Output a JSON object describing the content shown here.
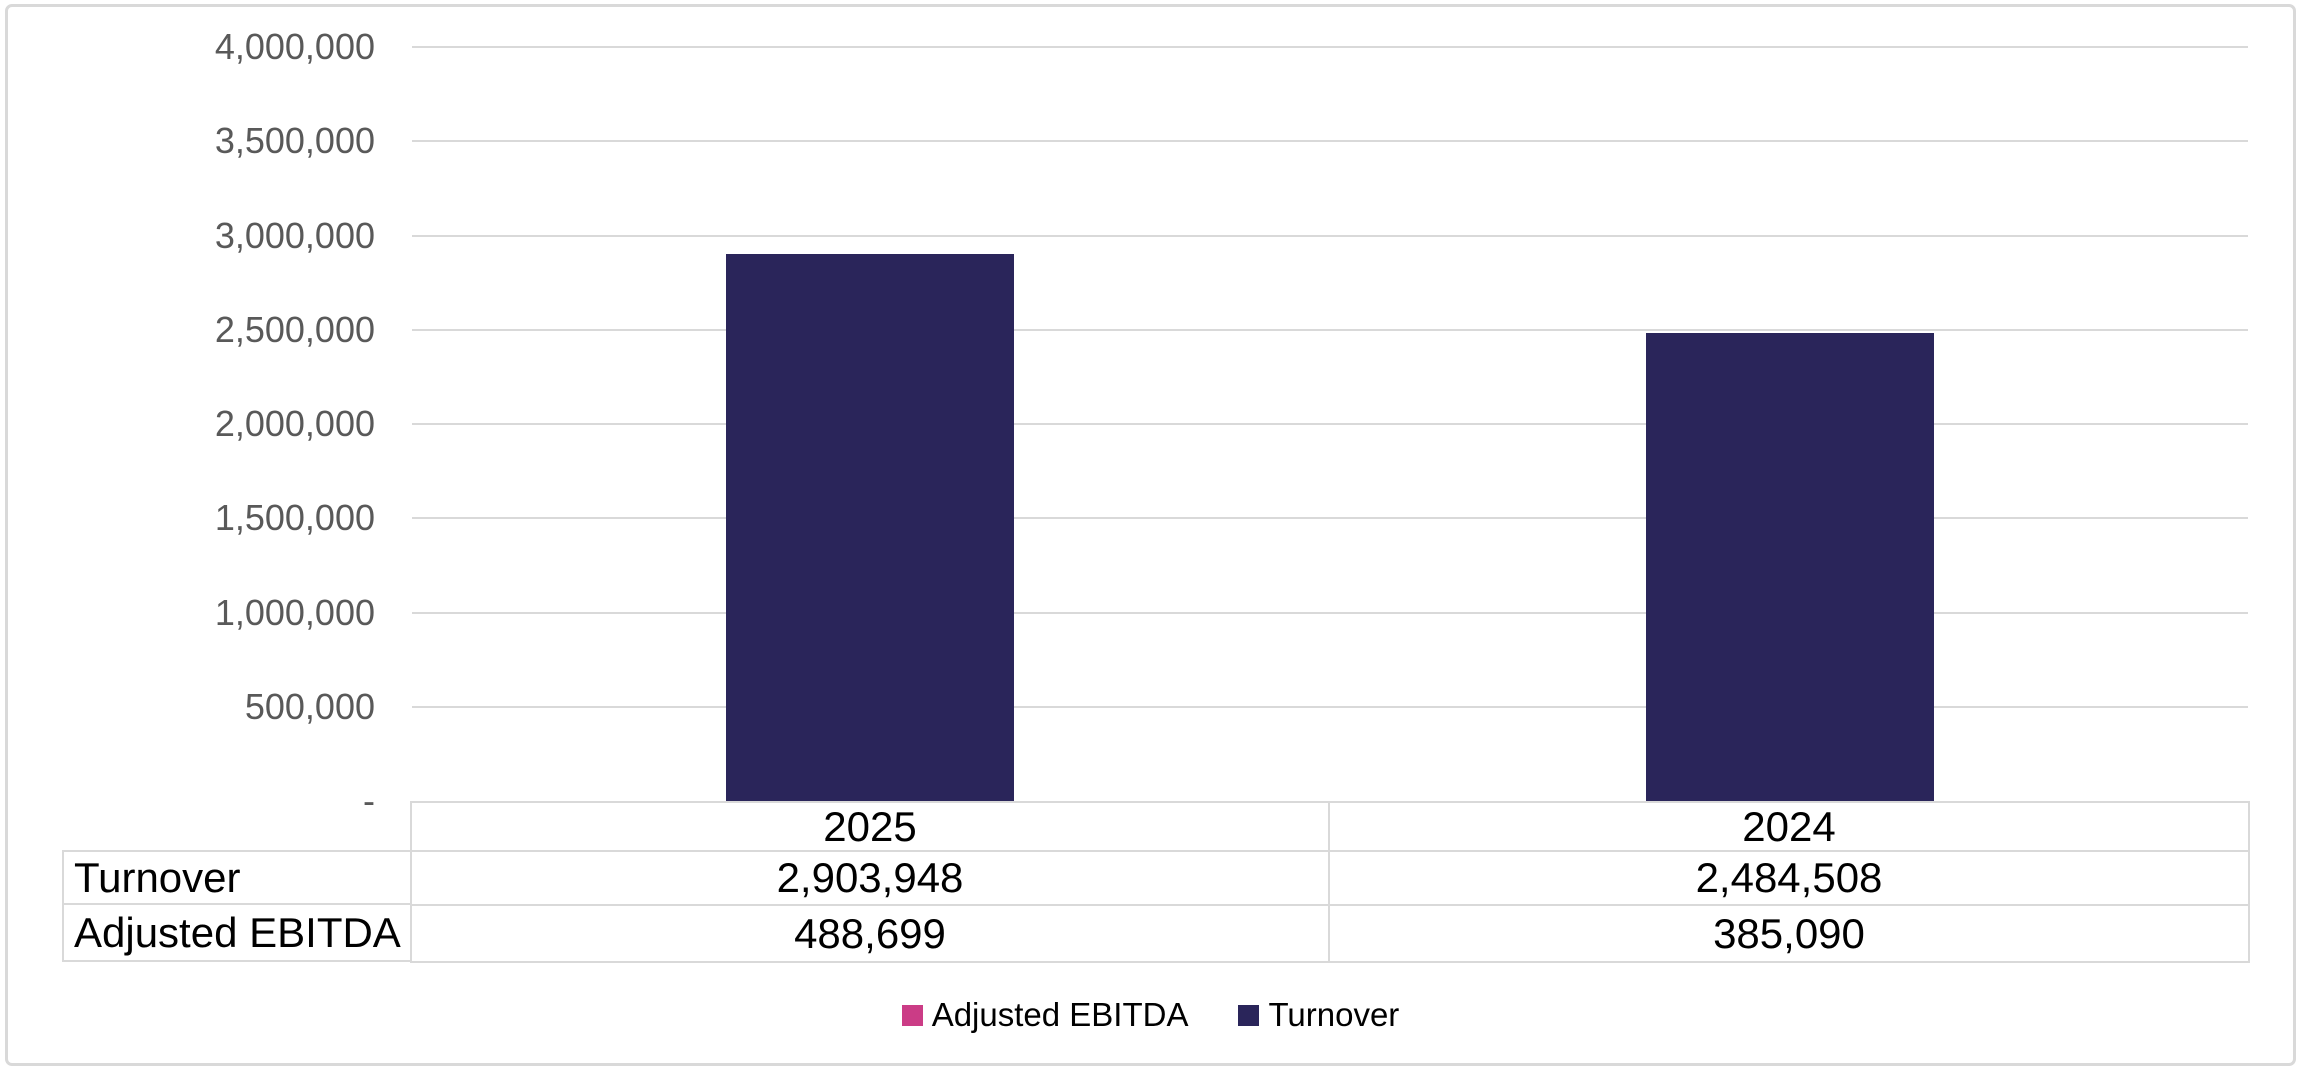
{
  "chart_data": {
    "type": "bar",
    "stacked": true,
    "title": "",
    "categories": [
      "2025",
      "2024"
    ],
    "series": [
      {
        "name": "Adjusted EBITDA",
        "color": "#CB3C86",
        "values": [
          488699,
          385090
        ]
      },
      {
        "name": "Turnover",
        "color": "#2A255A",
        "values": [
          2903948,
          2484508
        ]
      }
    ],
    "ylim": [
      0,
      4000000
    ],
    "ytick_step": 500000,
    "yticklabels": [
      "4,000,000",
      "3,500,000",
      "3,000,000",
      "2,500,000",
      "2,000,000",
      "1,500,000",
      "1,000,000",
      "500,000",
      "-"
    ],
    "zero_tick_label": "-",
    "grid": true,
    "xlabel": "",
    "ylabel": "",
    "legend_position": "bottom",
    "legend_items": [
      {
        "label": "Adjusted EBITDA",
        "color": "#CB3C86"
      },
      {
        "label": "Turnover",
        "color": "#2A255A"
      }
    ],
    "data_table": {
      "header_row": [
        "2025",
        "2024"
      ],
      "rows": [
        {
          "label": "Turnover",
          "values": [
            "2,903,948",
            "2,484,508"
          ]
        },
        {
          "label": "Adjusted EBITDA",
          "values": [
            "488,699",
            "385,090"
          ]
        }
      ]
    },
    "colors": {
      "gridline": "#D9D9D9",
      "axis_label": "#595959",
      "table_border": "#D9D9D9",
      "table_text": "#000000",
      "outer_border": "#D9D9D9",
      "background": "#FFFFFF"
    }
  }
}
